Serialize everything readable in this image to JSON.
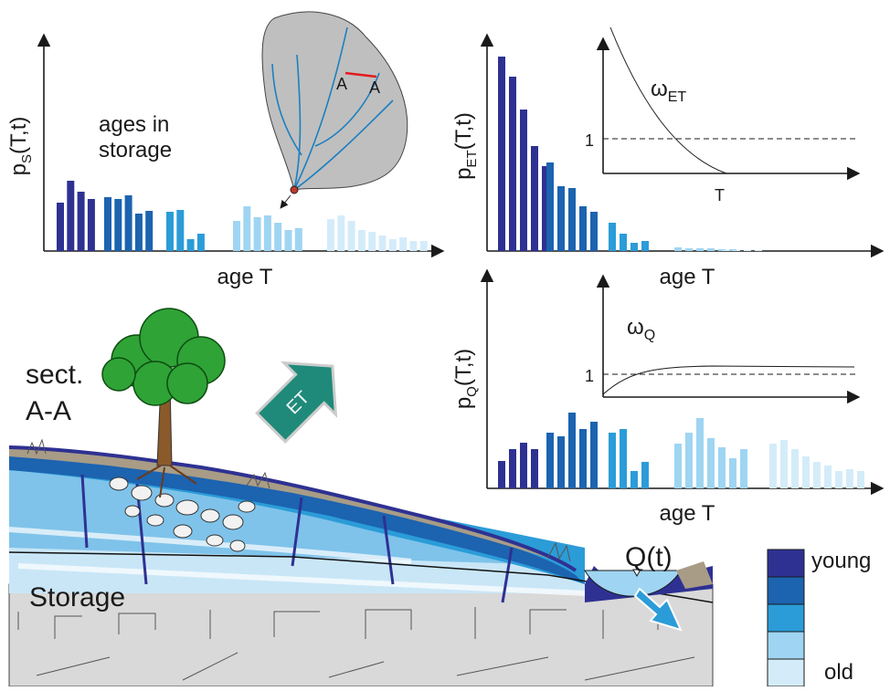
{
  "chart_data": [
    {
      "type": "bar",
      "x_label": "age T",
      "y_label": {
        "base": "p",
        "sub": "S",
        "rest": "(T,t)"
      },
      "annotation": [
        "ages in",
        "storage"
      ],
      "series": [
        {
          "color": "#2e3192",
          "values": [
            53,
            77,
            65,
            57
          ]
        },
        {
          "color": "#1c63b0",
          "values": [
            59,
            57,
            61,
            41,
            44
          ]
        },
        {
          "color": "#2b9cd8",
          "values": [
            43,
            45,
            13,
            19
          ]
        },
        {
          "color": "#9fd5f2",
          "values": [
            33,
            49,
            37,
            39,
            31,
            23,
            25
          ]
        },
        {
          "color": "#d4ecf9",
          "values": [
            35,
            39,
            33,
            23,
            21,
            17,
            13,
            15,
            11,
            11
          ]
        }
      ]
    },
    {
      "type": "bar",
      "x_label": "age T",
      "y_label": {
        "base": "p",
        "sub": "ET",
        "rest": "(T,t)"
      },
      "inset": {
        "symbol": "ω",
        "sub": "ET",
        "ref": "1",
        "x_label": "T"
      },
      "series": [
        {
          "color": "#2e3192",
          "values": [
            213,
            191,
            155,
            115,
            93
          ]
        },
        {
          "color": "#1c63b0",
          "values": [
            97,
            71,
            69,
            49,
            43
          ]
        },
        {
          "color": "#2b9cd8",
          "values": [
            31,
            19,
            9,
            11
          ]
        },
        {
          "color": "#9fd5f2",
          "values": [
            4,
            3,
            3,
            3,
            2,
            2
          ]
        },
        {
          "color": "#d4ecf9",
          "values": [
            1,
            1,
            1,
            1
          ]
        }
      ]
    },
    {
      "type": "bar",
      "x_label": "age T",
      "y_label": {
        "base": "p",
        "sub": "Q",
        "rest": "(T,t)"
      },
      "inset": {
        "symbol": "ω",
        "sub": "Q",
        "ref": "1"
      },
      "series": [
        {
          "color": "#2e3192",
          "values": [
            30,
            43,
            50,
            43
          ]
        },
        {
          "color": "#1c63b0",
          "values": [
            61,
            57,
            83,
            65,
            73
          ]
        },
        {
          "color": "#2b9cd8",
          "values": [
            61,
            65,
            19,
            29
          ]
        },
        {
          "color": "#9fd5f2",
          "values": [
            49,
            61,
            77,
            55,
            45,
            33,
            43
          ]
        },
        {
          "color": "#d4ecf9",
          "values": [
            49,
            53,
            43,
            35,
            29,
            25,
            19,
            21,
            19
          ]
        }
      ]
    }
  ],
  "map_labels": [
    "A",
    "A"
  ],
  "section": [
    "sect.",
    "A-A"
  ],
  "flux_et": "ET",
  "storage": "Storage",
  "discharge": "Q(t)",
  "legend": {
    "top": "young",
    "bottom": "old",
    "colors": [
      "#2e3192",
      "#1c63b0",
      "#2b9cd8",
      "#9fd5f2",
      "#d4ecf9"
    ]
  }
}
